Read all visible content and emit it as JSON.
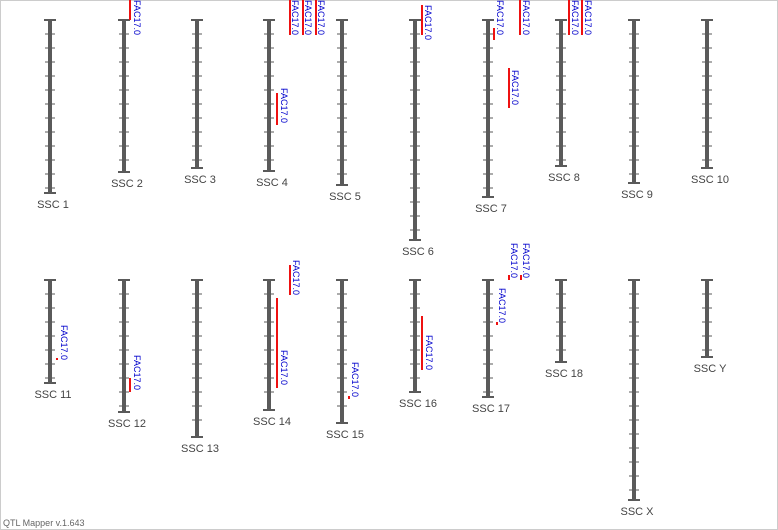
{
  "chromosomes": [
    {
      "label": "SSC 1",
      "qtls": []
    },
    {
      "label": "SSC 2",
      "qtls": [
        "FAC17.0"
      ]
    },
    {
      "label": "SSC 3",
      "qtls": []
    },
    {
      "label": "SSC 4",
      "qtls": [
        "FAC17.0",
        "FAC17.0",
        "FAC17.0",
        "FAC17.0"
      ]
    },
    {
      "label": "SSC 5",
      "qtls": []
    },
    {
      "label": "SSC 6",
      "qtls": [
        "FAC17.0"
      ]
    },
    {
      "label": "SSC 7",
      "qtls": [
        "FAC17.0",
        "FAC17.0",
        "FAC17.0"
      ]
    },
    {
      "label": "SSC 8",
      "qtls": [
        "FAC17.0",
        "FAC17.0"
      ]
    },
    {
      "label": "SSC 9",
      "qtls": []
    },
    {
      "label": "SSC 10",
      "qtls": []
    },
    {
      "label": "SSC 11",
      "qtls": [
        "FAC17.0"
      ]
    },
    {
      "label": "SSC 12",
      "qtls": [
        "FAC17.0"
      ]
    },
    {
      "label": "SSC 13",
      "qtls": []
    },
    {
      "label": "SSC 14",
      "qtls": [
        "FAC17.0",
        "FAC17.0"
      ]
    },
    {
      "label": "SSC 15",
      "qtls": [
        "FAC17.0"
      ]
    },
    {
      "label": "SSC 16",
      "qtls": [
        "FAC17.0"
      ]
    },
    {
      "label": "SSC 17",
      "qtls": [
        "FAC17.0",
        "FAC17.0",
        "FAC17.0"
      ]
    },
    {
      "label": "SSC 18",
      "qtls": []
    },
    {
      "label": "SSC X",
      "qtls": []
    },
    {
      "label": "SSC Y",
      "qtls": []
    }
  ],
  "footer": "QTL Mapper v.1.643"
}
